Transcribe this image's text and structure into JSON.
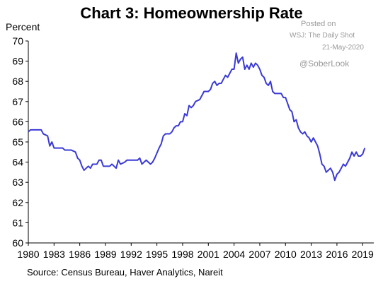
{
  "title": "Chart 3: Homeownership Rate",
  "watermark": {
    "posted": "Posted on",
    "source": "WSJ: The Daily Shot",
    "date": "21-May-2020",
    "handle": "@SoberLook"
  },
  "source_note": "Source: Census Bureau, Haver Analytics, Nareit",
  "colors": {
    "line": "#3a3ad6",
    "axis": "#000000",
    "background": "#ffffff"
  },
  "chart_data": {
    "type": "line",
    "title": "Chart 3: Homeownership Rate",
    "ylabel": "Percent",
    "xlabel": "",
    "xlim": [
      1980,
      2020.3
    ],
    "ylim": [
      60,
      70
    ],
    "grid": false,
    "x_ticks": [
      1980,
      1983,
      1986,
      1989,
      1992,
      1995,
      1998,
      2001,
      2004,
      2007,
      2010,
      2013,
      2016,
      2019
    ],
    "y_ticks": [
      60,
      61,
      62,
      63,
      64,
      65,
      66,
      67,
      68,
      69,
      70
    ],
    "series": [
      {
        "values": [
          [
            1980.0,
            65.5
          ],
          [
            1980.25,
            65.6
          ],
          [
            1981.0,
            65.6
          ],
          [
            1981.5,
            65.6
          ],
          [
            1981.75,
            65.4
          ],
          [
            1982.25,
            65.3
          ],
          [
            1982.5,
            64.8
          ],
          [
            1982.75,
            65.0
          ],
          [
            1983.0,
            64.7
          ],
          [
            1983.5,
            64.7
          ],
          [
            1984.0,
            64.7
          ],
          [
            1984.25,
            64.6
          ],
          [
            1985.0,
            64.6
          ],
          [
            1985.5,
            64.5
          ],
          [
            1985.75,
            64.2
          ],
          [
            1986.0,
            64.1
          ],
          [
            1986.25,
            63.8
          ],
          [
            1986.5,
            63.6
          ],
          [
            1986.75,
            63.7
          ],
          [
            1987.0,
            63.8
          ],
          [
            1987.25,
            63.7
          ],
          [
            1987.5,
            63.9
          ],
          [
            1988.0,
            63.9
          ],
          [
            1988.25,
            64.1
          ],
          [
            1988.5,
            64.1
          ],
          [
            1988.75,
            63.8
          ],
          [
            1989.5,
            63.8
          ],
          [
            1989.75,
            63.9
          ],
          [
            1990.0,
            63.8
          ],
          [
            1990.25,
            63.7
          ],
          [
            1990.5,
            64.1
          ],
          [
            1990.75,
            63.9
          ],
          [
            1991.25,
            64.0
          ],
          [
            1991.5,
            64.1
          ],
          [
            1992.0,
            64.1
          ],
          [
            1992.5,
            64.1
          ],
          [
            1992.75,
            64.1
          ],
          [
            1993.0,
            64.2
          ],
          [
            1993.25,
            63.9
          ],
          [
            1993.5,
            64.0
          ],
          [
            1993.75,
            64.1
          ],
          [
            1994.0,
            64.0
          ],
          [
            1994.25,
            63.9
          ],
          [
            1994.5,
            64.0
          ],
          [
            1994.75,
            64.2
          ],
          [
            1995.25,
            64.7
          ],
          [
            1995.5,
            64.9
          ],
          [
            1995.75,
            65.3
          ],
          [
            1996.0,
            65.4
          ],
          [
            1996.5,
            65.4
          ],
          [
            1996.75,
            65.5
          ],
          [
            1997.0,
            65.7
          ],
          [
            1997.25,
            65.8
          ],
          [
            1997.5,
            65.8
          ],
          [
            1997.75,
            66.0
          ],
          [
            1998.0,
            66.0
          ],
          [
            1998.25,
            66.4
          ],
          [
            1998.5,
            66.3
          ],
          [
            1998.75,
            66.8
          ],
          [
            1999.0,
            66.7
          ],
          [
            1999.25,
            66.8
          ],
          [
            1999.5,
            67.0
          ],
          [
            2000.0,
            67.1
          ],
          [
            2000.25,
            67.3
          ],
          [
            2000.5,
            67.5
          ],
          [
            2001.0,
            67.5
          ],
          [
            2001.25,
            67.6
          ],
          [
            2001.5,
            67.9
          ],
          [
            2001.75,
            68.0
          ],
          [
            2002.0,
            67.8
          ],
          [
            2002.25,
            67.9
          ],
          [
            2002.5,
            67.9
          ],
          [
            2002.75,
            68.1
          ],
          [
            2003.0,
            68.3
          ],
          [
            2003.25,
            68.2
          ],
          [
            2003.5,
            68.4
          ],
          [
            2003.75,
            68.6
          ],
          [
            2004.0,
            68.6
          ],
          [
            2004.25,
            69.4
          ],
          [
            2004.5,
            68.9
          ],
          [
            2004.75,
            69.1
          ],
          [
            2005.0,
            69.2
          ],
          [
            2005.25,
            68.6
          ],
          [
            2005.5,
            68.8
          ],
          [
            2005.75,
            68.6
          ],
          [
            2006.0,
            68.9
          ],
          [
            2006.25,
            68.7
          ],
          [
            2006.5,
            68.9
          ],
          [
            2006.75,
            68.8
          ],
          [
            2007.0,
            68.6
          ],
          [
            2007.25,
            68.3
          ],
          [
            2007.5,
            68.2
          ],
          [
            2007.75,
            67.9
          ],
          [
            2008.0,
            67.8
          ],
          [
            2008.25,
            68.0
          ],
          [
            2008.5,
            67.5
          ],
          [
            2008.75,
            67.4
          ],
          [
            2009.5,
            67.4
          ],
          [
            2009.75,
            67.2
          ],
          [
            2010.0,
            67.2
          ],
          [
            2010.25,
            66.9
          ],
          [
            2010.5,
            66.6
          ],
          [
            2010.75,
            66.5
          ],
          [
            2011.0,
            66.0
          ],
          [
            2011.25,
            66.1
          ],
          [
            2011.5,
            65.7
          ],
          [
            2011.75,
            65.5
          ],
          [
            2012.0,
            65.4
          ],
          [
            2012.25,
            65.5
          ],
          [
            2012.5,
            65.3
          ],
          [
            2012.75,
            65.2
          ],
          [
            2013.0,
            65.0
          ],
          [
            2013.25,
            65.2
          ],
          [
            2013.5,
            65.0
          ],
          [
            2013.75,
            64.8
          ],
          [
            2014.0,
            64.4
          ],
          [
            2014.25,
            63.9
          ],
          [
            2014.5,
            63.8
          ],
          [
            2014.75,
            63.5
          ],
          [
            2015.0,
            63.6
          ],
          [
            2015.25,
            63.7
          ],
          [
            2015.5,
            63.5
          ],
          [
            2015.75,
            63.1
          ],
          [
            2016.0,
            63.4
          ],
          [
            2016.25,
            63.5
          ],
          [
            2016.5,
            63.7
          ],
          [
            2016.75,
            63.9
          ],
          [
            2017.0,
            63.8
          ],
          [
            2017.25,
            64.0
          ],
          [
            2017.5,
            64.2
          ],
          [
            2017.75,
            64.5
          ],
          [
            2018.0,
            64.3
          ],
          [
            2018.25,
            64.5
          ],
          [
            2018.5,
            64.3
          ],
          [
            2018.75,
            64.3
          ],
          [
            2019.0,
            64.4
          ],
          [
            2019.25,
            64.7
          ]
        ]
      }
    ]
  }
}
